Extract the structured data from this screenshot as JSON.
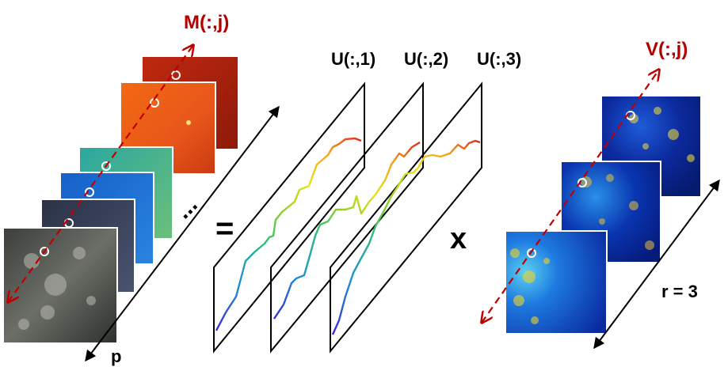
{
  "labels": {
    "m_col": "M(:,j)",
    "v_col": "V(:,j)",
    "u1": "U(:,1)",
    "u2": "U(:,2)",
    "u3": "U(:,3)",
    "p_axis": "p",
    "r_axis": "r = 3",
    "equals": "=",
    "times": "x",
    "ellipsis": "..."
  },
  "colors": {
    "dashed_arrow": "#c00000",
    "label_red": "#b00000",
    "panel_border": "#000000",
    "gradient": [
      "#3a2ad0",
      "#1f8fd6",
      "#2ac07a",
      "#9ad11c",
      "#e8e21a",
      "#f2a21a",
      "#e0281a"
    ]
  },
  "stacks": {
    "m_layers": [
      "red",
      "orange",
      "teal",
      "blue",
      "dark-slate",
      "grayscale"
    ],
    "v_layers": [
      "jet-dark",
      "jet-mid",
      "jet-bright"
    ]
  }
}
